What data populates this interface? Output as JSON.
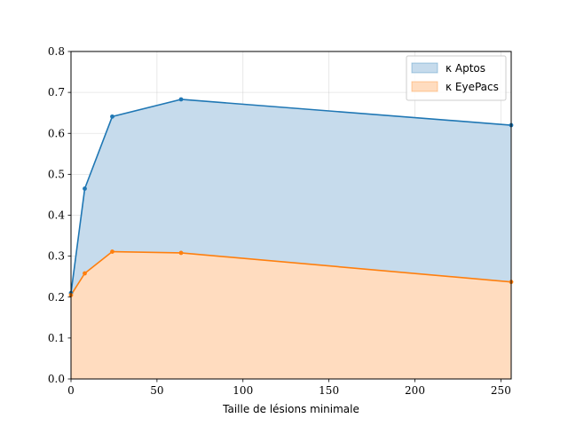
{
  "chart_data": {
    "type": "area",
    "xlabel": "Taille de lésions minimale",
    "ylabel": "",
    "xlim": [
      0,
      256
    ],
    "ylim": [
      0,
      0.8
    ],
    "xticks": [
      "0",
      "50",
      "100",
      "150",
      "200",
      "250"
    ],
    "yticks": [
      "0.0",
      "0.1",
      "0.2",
      "0.3",
      "0.4",
      "0.5",
      "0.6",
      "0.7",
      "0.8"
    ],
    "grid": true,
    "legend_position": "top-right",
    "series": [
      {
        "name": "κ Aptos",
        "color": "#1f77b4",
        "fill": "#c6dbec",
        "x": [
          0,
          8,
          24,
          64,
          256
        ],
        "y": [
          0.21,
          0.465,
          0.641,
          0.683,
          0.62
        ]
      },
      {
        "name": "κ EyePacs",
        "color": "#ff7f0e",
        "fill": "#ffdcbf",
        "x": [
          0,
          8,
          24,
          64,
          256
        ],
        "y": [
          0.205,
          0.258,
          0.311,
          0.308,
          0.237
        ]
      }
    ]
  }
}
